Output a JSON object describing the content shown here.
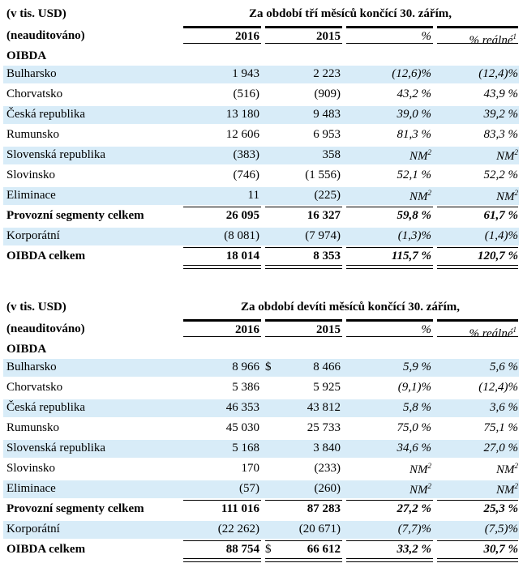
{
  "tables": [
    {
      "unit_label": "(v tis. USD)",
      "period_title": "Za období tří měsíců končící 30. zářím,",
      "subtitle": "(neauditováno)",
      "columns": [
        "2016",
        "2015",
        "%",
        "% reálné"
      ],
      "real_footnote": "1",
      "section": "OIBDA",
      "rows": [
        {
          "label": "Bulharsko",
          "v2016": "1 943",
          "v2015": "2 223",
          "pct": "(12,6)%",
          "real": "(12,4)%"
        },
        {
          "label": "Chorvatsko",
          "v2016": "(516)",
          "v2015": "(909)",
          "pct": "43,2 %",
          "real": "43,9 %"
        },
        {
          "label": "Česká republika",
          "v2016": "13 180",
          "v2015": "9 483",
          "pct": "39,0 %",
          "real": "39,2 %"
        },
        {
          "label": "Rumunsko",
          "v2016": "12 606",
          "v2015": "6 953",
          "pct": "81,3 %",
          "real": "83,3 %"
        },
        {
          "label": "Slovenská republika",
          "v2016": "(383)",
          "v2015": "358",
          "pct": "NM",
          "pct_note": "2",
          "real": "NM",
          "real_note": "2"
        },
        {
          "label": "Slovinsko",
          "v2016": "(746)",
          "v2015": "(1 556)",
          "pct": "52,1 %",
          "real": "52,2 %"
        },
        {
          "label": "Eliminace",
          "v2016": "11",
          "v2015": "(225)",
          "pct": "NM",
          "pct_note": "2",
          "real": "NM",
          "real_note": "2"
        },
        {
          "label": "Provozní segmenty celkem",
          "v2016": "26 095",
          "v2015": "16 327",
          "pct": "59,8 %",
          "real": "61,7 %"
        },
        {
          "label": "Korporátní",
          "v2016": "(8 081)",
          "v2015": "(7 974)",
          "pct": "(1,3)%",
          "real": "(1,4)%"
        },
        {
          "label": "OIBDA celkem",
          "v2016": "18 014",
          "v2015": "8 353",
          "pct": "115,7 %",
          "real": "120,7 %"
        }
      ]
    },
    {
      "unit_label": "(v tis. USD)",
      "period_title": "Za období devíti měsíců končící 30. zářím,",
      "subtitle": "(neauditováno)",
      "columns": [
        "2016",
        "2015",
        "%",
        "% reálné"
      ],
      "real_footnote": "1",
      "section": "OIBDA",
      "currency": "$",
      "rows": [
        {
          "label": "Bulharsko",
          "v2016": "8 966",
          "v2015": "8 466",
          "pct": "5,9 %",
          "real": "5,6 %"
        },
        {
          "label": "Chorvatsko",
          "v2016": "5 386",
          "v2015": "5 925",
          "pct": "(9,1)%",
          "real": "(12,4)%"
        },
        {
          "label": "Česká republika",
          "v2016": "46 353",
          "v2015": "43 812",
          "pct": "5,8 %",
          "real": "3,6 %"
        },
        {
          "label": "Rumunsko",
          "v2016": "45 030",
          "v2015": "25 733",
          "pct": "75,0 %",
          "real": "75,1 %"
        },
        {
          "label": "Slovenská republika",
          "v2016": "5 168",
          "v2015": "3 840",
          "pct": "34,6 %",
          "real": "27,0 %"
        },
        {
          "label": "Slovinsko",
          "v2016": "170",
          "v2015": "(233)",
          "pct": "NM",
          "pct_note": "2",
          "real": "NM",
          "real_note": "2"
        },
        {
          "label": "Eliminace",
          "v2016": "(57)",
          "v2015": "(260)",
          "pct": "NM",
          "pct_note": "2",
          "real": "NM",
          "real_note": "2"
        },
        {
          "label": "Provozní segmenty celkem",
          "v2016": "111 016",
          "v2015": "87 283",
          "pct": "27,2 %",
          "real": "25,3 %"
        },
        {
          "label": "Korporátní",
          "v2016": "(22 262)",
          "v2015": "(20 671)",
          "pct": "(7,7)%",
          "real": "(7,5)%"
        },
        {
          "label": "OIBDA celkem",
          "v2016": "88 754",
          "v2015": "66 612",
          "pct": "33,2 %",
          "real": "30,7 %"
        }
      ]
    }
  ]
}
